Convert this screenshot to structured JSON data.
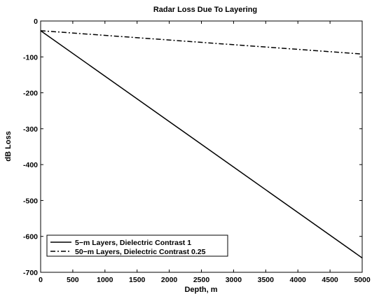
{
  "chart_data": {
    "type": "line",
    "title": "Radar Loss Due To Layering",
    "xlabel": "Depth, m",
    "ylabel": "dB Loss",
    "xlim": [
      0,
      5000
    ],
    "ylim": [
      -700,
      0
    ],
    "xticks": [
      0,
      500,
      1000,
      1500,
      2000,
      2500,
      3000,
      3500,
      4000,
      4500,
      5000
    ],
    "yticks": [
      0,
      -100,
      -200,
      -300,
      -400,
      -500,
      -600,
      -700
    ],
    "grid": false,
    "legend_position": "bottom-left",
    "series": [
      {
        "name": "5−m Layers, Dielectric Contrast 1",
        "style": "solid",
        "color": "#000000",
        "x": [
          0,
          5000
        ],
        "y": [
          -27,
          -660
        ]
      },
      {
        "name": "50−m Layers, Dielectric Contrast 0.25",
        "style": "dash-dot",
        "color": "#000000",
        "x": [
          0,
          5000
        ],
        "y": [
          -27,
          -92
        ]
      }
    ]
  }
}
